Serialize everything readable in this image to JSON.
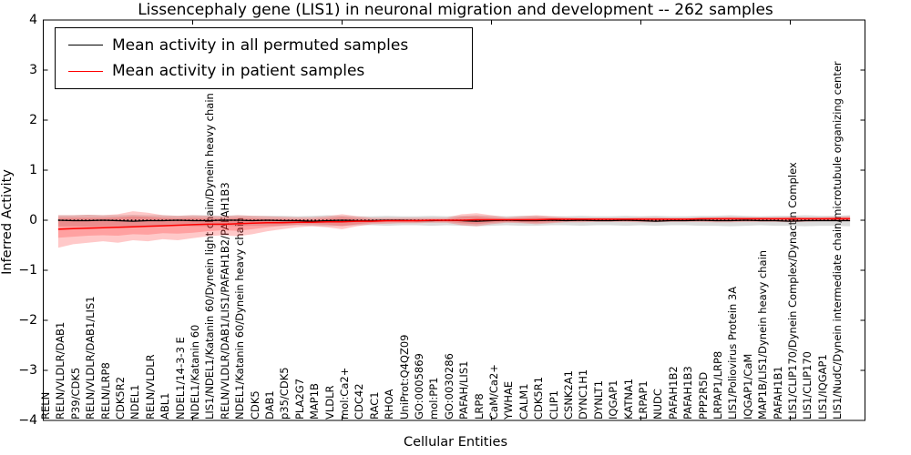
{
  "title": "Lissencephaly gene (LIS1) in neuronal migration and development -- 262 samples",
  "axes": {
    "y_label": "Inferred Activity",
    "x_label": "Cellular Entities",
    "y_ticks": [
      4,
      3,
      2,
      1,
      0,
      -1,
      -2,
      -3,
      -4
    ],
    "ylim": [
      -4,
      4
    ]
  },
  "legend": {
    "items": [
      {
        "label": "Mean activity in all permuted samples",
        "color": "#000000"
      },
      {
        "label": "Mean activity in patient samples",
        "color": "#ff0000"
      }
    ]
  },
  "colors": {
    "permuted_line": "#000000",
    "patient_line": "#ff0000",
    "zero_dotted_line": "#000000",
    "permuted_band": "rgba(130,130,130,0.28)",
    "patient_band": "rgba(255,45,45,0.26)",
    "axis": "#000000"
  },
  "chart_data": {
    "type": "line",
    "title": "Lissencephaly gene (LIS1) in neuronal migration and development -- 262 samples",
    "xlabel": "Cellular Entities",
    "ylabel": "Inferred Activity",
    "ylim": [
      -4,
      4
    ],
    "grid": false,
    "legend_position": "upper left",
    "x_tick_positions": [
      9,
      19,
      29,
      39,
      49
    ],
    "categories": [
      "RELN",
      "RELN/VLDLR/DAB1",
      "P39/CDK5",
      "RELN/VLDLR/DAB1/LIS1",
      "RELN/LRP8",
      "CDK5R2",
      "NDEL1",
      "RELN/VLDLR",
      "ABL1",
      "NDEL1/14-3-3 E",
      "NDEL1/Katanin 60",
      "LIS1/NDEL1/Katanin 60/Dynein light chain/Dynein heavy chain",
      "RELN/VLDLR/DAB1/LIS1/PAFAH1B2/PAFAH1B3",
      "NDEL1/Katanin 60/Dynein heavy chain",
      "CDK5",
      "DAB1",
      "p35/CDK5",
      "PLA2G7",
      "MAP1B",
      "VLDLR",
      "mol:Ca2+",
      "CDC42",
      "RAC1",
      "RHOA",
      "UniProt:Q4QZ09",
      "GO:0005869",
      "mol:PP1",
      "GO:0030286",
      "PAFAH/LIS1",
      "LRP8",
      "CaM/Ca2+",
      "YWHAE",
      "CALM1",
      "CDK5R1",
      "CLIP1",
      "CSNK2A1",
      "DYNC1H1",
      "DYNLT1",
      "IQGAP1",
      "KATNA1",
      "LRPAP1",
      "NUDC",
      "PAFAH1B2",
      "PAFAH1B3",
      "PPP2R5D",
      "LRPAP1/LRP8",
      "LIS1/Poliovirus Protein 3A",
      "IQGAP1/CaM",
      "MAP1B/LIS1/Dynein heavy chain",
      "PAFAH1B1",
      "LIS1/CLIP170/Dynein Complex/Dynactin Complex",
      "LIS1/CLIP170",
      "LIS1/IQGAP1",
      "LIS1/NudC/Dynein intermediate chain/microtubule organizing center"
    ],
    "series": [
      {
        "name": "Mean activity in patient samples",
        "values": [
          -0.18,
          -0.17,
          -0.16,
          -0.15,
          -0.14,
          -0.13,
          -0.12,
          -0.11,
          -0.1,
          -0.09,
          -0.08,
          -0.08,
          -0.07,
          -0.06,
          -0.05,
          -0.05,
          -0.04,
          -0.04,
          -0.03,
          -0.03,
          -0.02,
          -0.02,
          -0.01,
          -0.01,
          -0.01,
          0,
          0,
          0,
          0.01,
          0.01,
          0.01,
          0.01,
          0.01,
          0.02,
          0.02,
          0.02,
          0.02,
          0.02,
          0.02,
          0.02,
          0.02,
          0.02,
          0.02,
          0.03,
          0.03,
          0.03,
          0.03,
          0.03,
          0.03,
          0.03,
          0.03,
          0.03,
          0.03,
          0.03
        ],
        "band_outer_upper": [
          0.1,
          0.1,
          0.11,
          0.1,
          0.12,
          0.18,
          0.15,
          0.1,
          0.09,
          0.1,
          0.09,
          0.08,
          0.1,
          0.09,
          0.08,
          0.07,
          0.06,
          0.06,
          0.08,
          0.12,
          0.08,
          0.05,
          0.05,
          0.05,
          0.05,
          0.05,
          0.05,
          0.12,
          0.14,
          0.1,
          0.06,
          0.08,
          0.1,
          0.08,
          0.06,
          0.05,
          0.05,
          0.05,
          0.05,
          0.06,
          0.06,
          0.05,
          0.05,
          0.05,
          0.06,
          0.07,
          0.06,
          0.06,
          0.06,
          0.07,
          0.06,
          0.06,
          0.07,
          0.08
        ],
        "band_outer_lower": [
          -0.55,
          -0.48,
          -0.45,
          -0.42,
          -0.45,
          -0.4,
          -0.42,
          -0.38,
          -0.4,
          -0.36,
          -0.32,
          -0.3,
          -0.32,
          -0.28,
          -0.22,
          -0.18,
          -0.14,
          -0.12,
          -0.14,
          -0.18,
          -0.12,
          -0.08,
          -0.07,
          -0.06,
          -0.06,
          -0.05,
          -0.05,
          -0.1,
          -0.12,
          -0.08,
          -0.05,
          -0.06,
          -0.08,
          -0.06,
          -0.04,
          -0.04,
          -0.03,
          -0.03,
          -0.03,
          -0.04,
          -0.04,
          -0.03,
          -0.03,
          -0.03,
          -0.04,
          -0.04,
          -0.03,
          -0.03,
          -0.03,
          -0.04,
          -0.03,
          -0.02,
          -0.02,
          -0.02
        ],
        "band_inner_upper": [
          0.05,
          0.05,
          0.05,
          0.05,
          0.06,
          0.08,
          0.07,
          0.05,
          0.04,
          0.05,
          0.04,
          0.04,
          0.05,
          0.04,
          0.03,
          0.03,
          0.02,
          0.02,
          0.04,
          0.07,
          0.04,
          0.02,
          0.02,
          0.02,
          0.02,
          0.02,
          0.02,
          0.07,
          0.08,
          0.05,
          0.03,
          0.04,
          0.06,
          0.04,
          0.03,
          0.03,
          0.03,
          0.03,
          0.03,
          0.03,
          0.03,
          0.03,
          0.03,
          0.03,
          0.04,
          0.04,
          0.04,
          0.04,
          0.04,
          0.04,
          0.04,
          0.04,
          0.05,
          0.05
        ],
        "band_inner_lower": [
          -0.35,
          -0.33,
          -0.31,
          -0.3,
          -0.31,
          -0.28,
          -0.29,
          -0.26,
          -0.27,
          -0.25,
          -0.22,
          -0.2,
          -0.21,
          -0.18,
          -0.14,
          -0.11,
          -0.09,
          -0.08,
          -0.09,
          -0.12,
          -0.08,
          -0.05,
          -0.04,
          -0.04,
          -0.04,
          -0.03,
          -0.03,
          -0.06,
          -0.08,
          -0.05,
          -0.03,
          -0.04,
          -0.05,
          -0.04,
          -0.02,
          -0.02,
          -0.02,
          -0.02,
          -0.02,
          -0.02,
          -0.02,
          -0.02,
          -0.02,
          -0.02,
          -0.02,
          -0.02,
          -0.02,
          -0.02,
          -0.02,
          -0.02,
          -0.01,
          -0.01,
          -0.01,
          0.0
        ]
      },
      {
        "name": "Mean activity in all permuted samples",
        "values": [
          0,
          -0.01,
          -0.01,
          0,
          -0.01,
          -0.02,
          -0.01,
          -0.01,
          0,
          -0.01,
          -0.01,
          0,
          0,
          -0.01,
          0,
          -0.01,
          -0.01,
          -0.02,
          -0.01,
          0,
          -0.01,
          -0.01,
          0,
          0,
          -0.01,
          -0.01,
          0,
          -0.01,
          -0.02,
          -0.01,
          0,
          -0.01,
          -0.01,
          0,
          -0.01,
          0,
          -0.01,
          -0.01,
          0,
          -0.01,
          -0.02,
          -0.01,
          -0.01,
          0,
          -0.01,
          -0.01,
          0,
          -0.01,
          -0.01,
          -0.02,
          -0.01,
          -0.01,
          -0.01,
          -0.01
        ],
        "band_upper": [
          0.1,
          0.1,
          0.11,
          0.1,
          0.1,
          0.11,
          0.1,
          0.1,
          0.09,
          0.1,
          0.1,
          0.09,
          0.1,
          0.09,
          0.09,
          0.09,
          0.08,
          0.09,
          0.1,
          0.09,
          0.08,
          0.08,
          0.09,
          0.08,
          0.08,
          0.09,
          0.08,
          0.09,
          0.1,
          0.09,
          0.08,
          0.09,
          0.09,
          0.08,
          0.08,
          0.09,
          0.08,
          0.08,
          0.09,
          0.08,
          0.09,
          0.08,
          0.08,
          0.09,
          0.09,
          0.1,
          0.09,
          0.08,
          0.09,
          0.09,
          0.1,
          0.09,
          0.09,
          0.1
        ],
        "band_lower": [
          -0.12,
          -0.12,
          -0.13,
          -0.12,
          -0.12,
          -0.13,
          -0.12,
          -0.12,
          -0.11,
          -0.12,
          -0.12,
          -0.11,
          -0.12,
          -0.11,
          -0.11,
          -0.11,
          -0.1,
          -0.11,
          -0.12,
          -0.11,
          -0.1,
          -0.1,
          -0.11,
          -0.1,
          -0.1,
          -0.11,
          -0.1,
          -0.11,
          -0.12,
          -0.11,
          -0.1,
          -0.11,
          -0.11,
          -0.1,
          -0.1,
          -0.11,
          -0.1,
          -0.1,
          -0.11,
          -0.1,
          -0.11,
          -0.1,
          -0.1,
          -0.11,
          -0.11,
          -0.12,
          -0.11,
          -0.1,
          -0.11,
          -0.11,
          -0.12,
          -0.11,
          -0.11,
          -0.12
        ]
      }
    ],
    "zero_reference_line": 0
  }
}
